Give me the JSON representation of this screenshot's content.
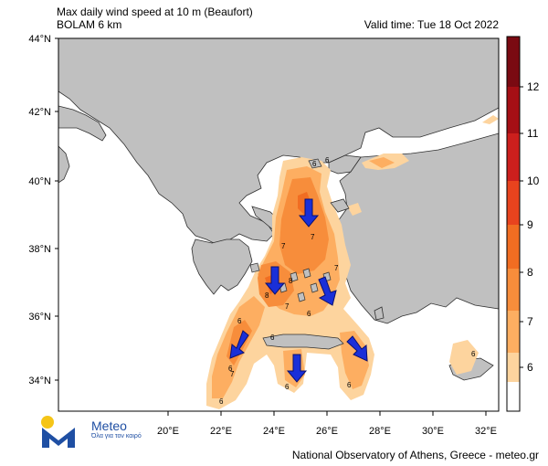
{
  "header": {
    "title_line1": "Max daily wind speed at 10 m (Beaufort)",
    "title_line2": "BOLAM 6 km",
    "valid_time": "Valid time: Tue 18 Oct 2022"
  },
  "axes": {
    "lat_labels": [
      "44°N",
      "42°N",
      "40°N",
      "38°N",
      "36°N",
      "34°N"
    ],
    "lon_labels": [
      "20°E",
      "22°E",
      "24°E",
      "26°E",
      "28°E",
      "30°E",
      "32°E"
    ]
  },
  "colorbar": {
    "labels": [
      "6",
      "7",
      "8",
      "9",
      "10",
      "11",
      "12"
    ],
    "colors": [
      "#fdd49e",
      "#fdae61",
      "#f78d3b",
      "#f16d22",
      "#e8431e",
      "#cc1f1d",
      "#a50f15",
      "#7a0a12"
    ]
  },
  "map_contour_labels": [
    "6",
    "6",
    "6",
    "6",
    "6",
    "6",
    "6",
    "6",
    "6",
    "6",
    "7",
    "7",
    "7",
    "7",
    "7",
    "8",
    "8"
  ],
  "colors": {
    "sea": "#ffffff",
    "land": "#c0c0c0",
    "border": "#303030",
    "arrow": "#1a2fd8"
  },
  "logo": {
    "name": "Meteo",
    "tagline": "Όλα για τον καιρό"
  },
  "footer": "National Observatory of Athens, Greece - meteo.gr"
}
